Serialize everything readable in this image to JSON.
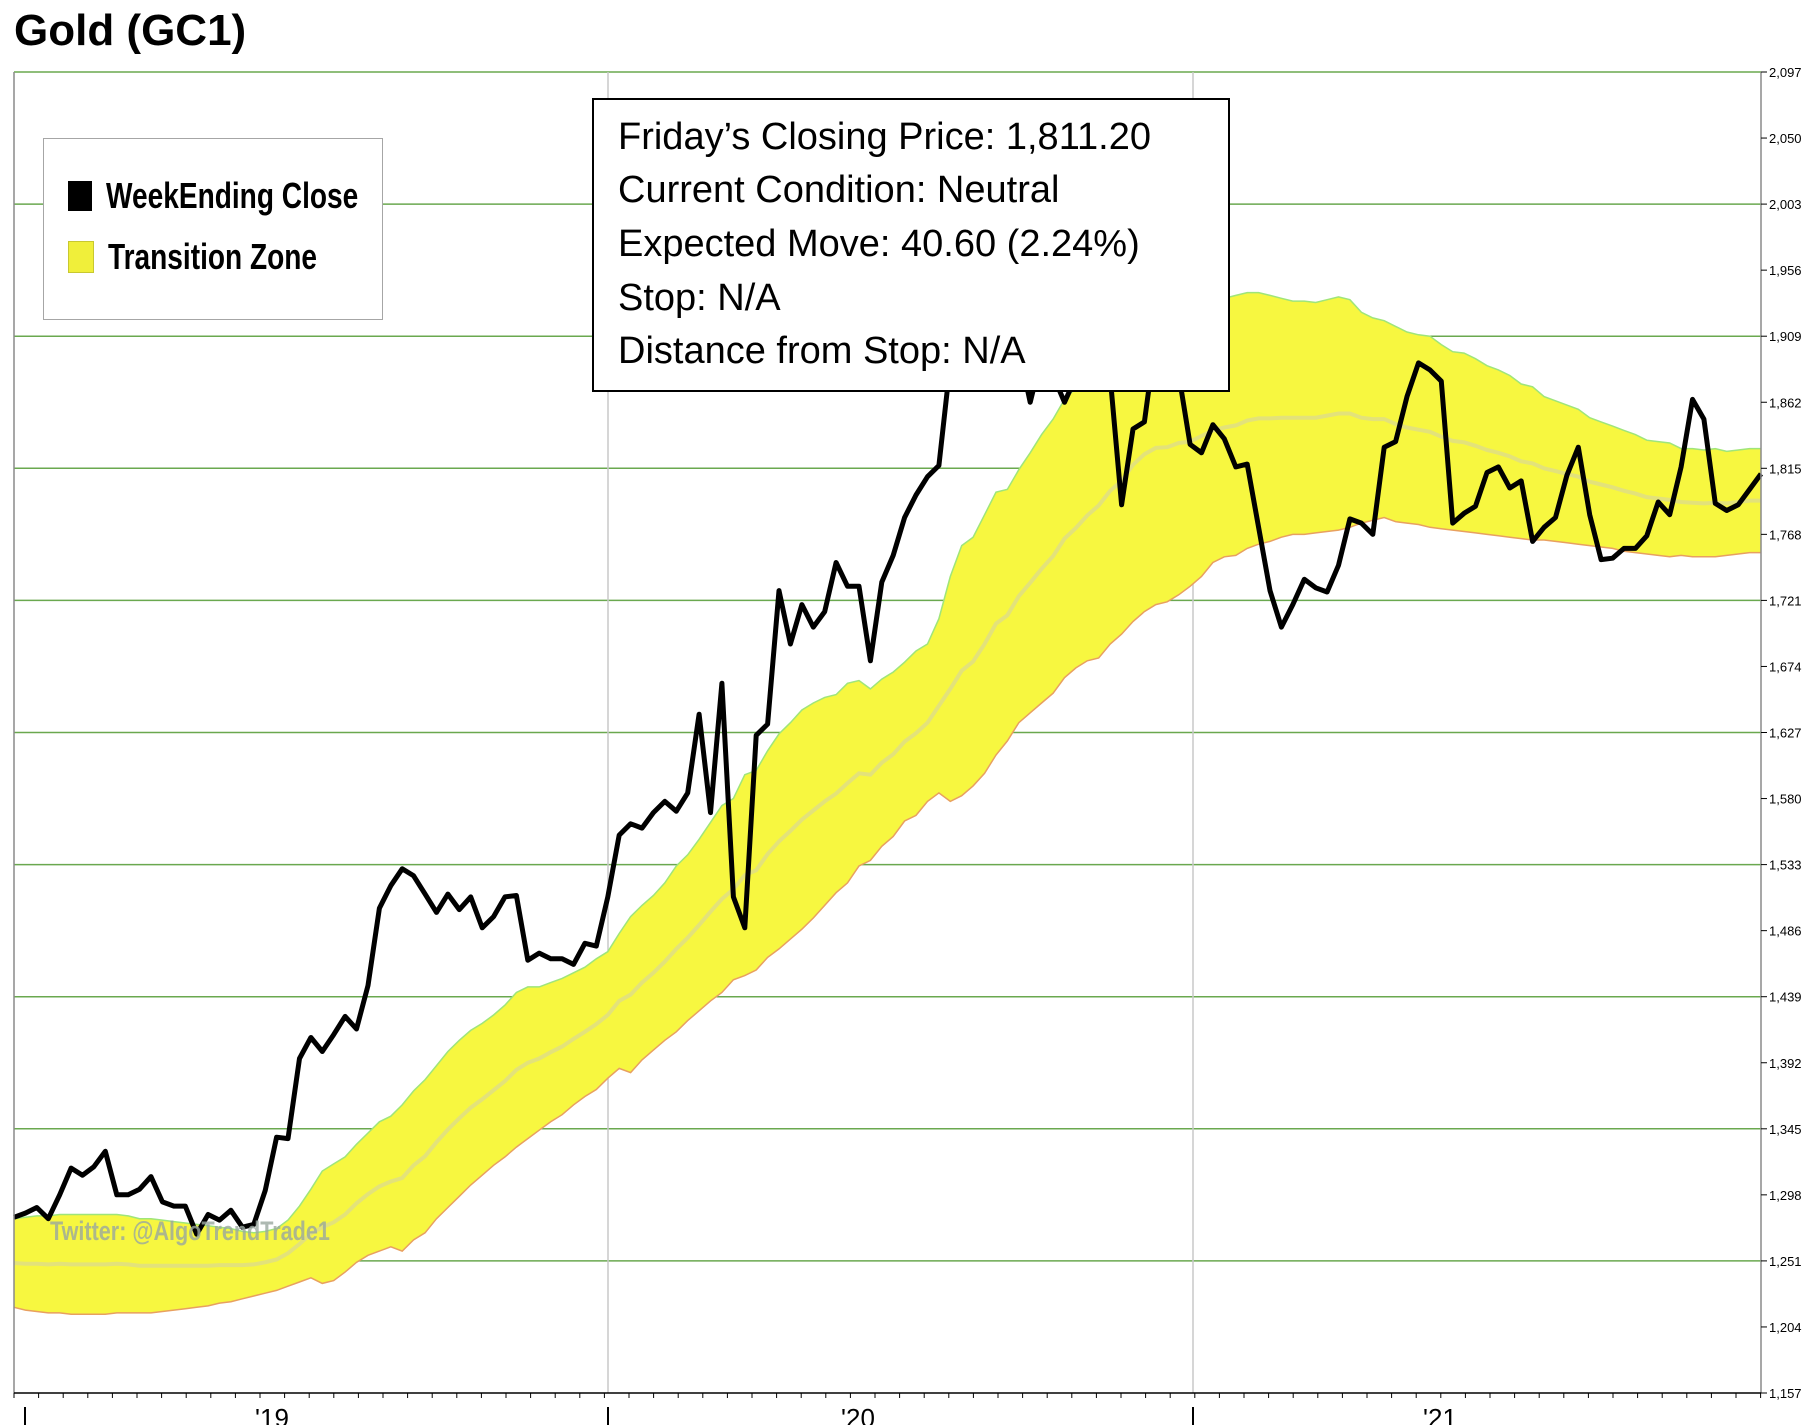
{
  "title": "Gold (GC1)",
  "legend": {
    "close_label": "WeekEnding Close",
    "zone_label": "Transition Zone",
    "close_color": "#000000",
    "zone_color": "#f7f740"
  },
  "info": {
    "closing": "Friday’s Closing Price: 1,811.20",
    "condition": "Current Condition: Neutral",
    "expected": "Expected Move: 40.60 (2.24%)",
    "stop": "Stop: N/A",
    "distance": "Distance from Stop: N/A"
  },
  "watermark": "Twitter: @AlgoTrendTrade1",
  "chart_data": {
    "type": "line",
    "title": "Gold (GC1)",
    "x_tick_labels": [
      "'19",
      "'20",
      "'21"
    ],
    "y_tick_labels": [
      "2,097",
      "2,050",
      "2,003",
      "1,956",
      "1,909",
      "1,862",
      "1,815",
      "1,768",
      "1,721",
      "1,674",
      "1,627",
      "1,580",
      "1,533",
      "1,486",
      "1,439",
      "1,392",
      "1,345",
      "1,298",
      "1,251",
      "1,204",
      "1,157"
    ],
    "ylim": [
      1157,
      2097
    ],
    "grid": true,
    "legend_position": "top-left",
    "series": [
      {
        "name": "WeekEnding Close",
        "color": "#000000",
        "values": [
          1282,
          1285,
          1289,
          1281,
          1298,
          1317,
          1312,
          1318,
          1329,
          1298,
          1298,
          1302,
          1311,
          1293,
          1290,
          1290,
          1270,
          1284,
          1280,
          1287,
          1275,
          1277,
          1301,
          1339,
          1338,
          1395,
          1410,
          1400,
          1412,
          1425,
          1416,
          1447,
          1502,
          1518,
          1530,
          1525,
          1512,
          1499,
          1512,
          1501,
          1510,
          1488,
          1496,
          1510,
          1511,
          1465,
          1470,
          1466,
          1466,
          1462,
          1477,
          1475,
          1510,
          1554,
          1562,
          1559,
          1570,
          1578,
          1571,
          1584,
          1640,
          1570,
          1662,
          1510,
          1488,
          1625,
          1633,
          1728,
          1690,
          1718,
          1702,
          1713,
          1748,
          1731,
          1731,
          1678,
          1734,
          1753,
          1780,
          1796,
          1809,
          1817,
          1890,
          1960,
          2002,
          1968,
          1937,
          1924,
          1900,
          1862,
          1895,
          1881,
          1862,
          1880,
          1880,
          1890,
          1880,
          1789,
          1843,
          1848,
          1908,
          1874,
          1882,
          1832,
          1826,
          1846,
          1836,
          1816,
          1818,
          1773,
          1728,
          1702,
          1718,
          1736,
          1730,
          1727,
          1746,
          1779,
          1776,
          1768,
          1830,
          1834,
          1866,
          1890,
          1885,
          1877,
          1776,
          1783,
          1788,
          1812,
          1816,
          1801,
          1806,
          1763,
          1773,
          1780,
          1810,
          1830,
          1782,
          1750,
          1751,
          1758,
          1758,
          1767,
          1791,
          1782,
          1816,
          1864,
          1850,
          1790,
          1785,
          1789,
          1800,
          1811
        ]
      },
      {
        "name": "Transition Zone upper",
        "color": "#9fe57a",
        "values": [
          1281,
          1282,
          1283,
          1283,
          1284,
          1284,
          1284,
          1284,
          1284,
          1284,
          1283,
          1281,
          1281,
          1280,
          1279,
          1278,
          1277,
          1276,
          1275,
          1274,
          1272,
          1271,
          1272,
          1274,
          1280,
          1290,
          1302,
          1315,
          1320,
          1325,
          1334,
          1342,
          1350,
          1354,
          1362,
          1372,
          1380,
          1390,
          1400,
          1408,
          1415,
          1420,
          1426,
          1433,
          1442,
          1446,
          1446,
          1449,
          1452,
          1456,
          1460,
          1466,
          1471,
          1484,
          1496,
          1504,
          1511,
          1520,
          1532,
          1540,
          1551,
          1563,
          1575,
          1580,
          1597,
          1600,
          1614,
          1626,
          1634,
          1643,
          1648,
          1652,
          1654,
          1662,
          1664,
          1658,
          1665,
          1670,
          1677,
          1685,
          1690,
          1708,
          1738,
          1760,
          1766,
          1782,
          1798,
          1800,
          1814,
          1826,
          1839,
          1850,
          1864,
          1872,
          1885,
          1897,
          1908,
          1915,
          1929,
          1937,
          1941,
          1940,
          1941,
          1937,
          1938,
          1936,
          1936,
          1938,
          1940,
          1940,
          1938,
          1936,
          1934,
          1934,
          1933,
          1935,
          1937,
          1935,
          1926,
          1922,
          1920,
          1916,
          1912,
          1910,
          1909,
          1903,
          1898,
          1897,
          1893,
          1888,
          1885,
          1881,
          1875,
          1873,
          1866,
          1863,
          1860,
          1857,
          1851,
          1848,
          1845,
          1842,
          1839,
          1835,
          1834,
          1833,
          1829,
          1829,
          1828,
          1829,
          1827,
          1828,
          1829,
          1829
        ]
      },
      {
        "name": "Transition Zone lower",
        "color": "#e8a060",
        "values": [
          1218,
          1216,
          1215,
          1214,
          1214,
          1213,
          1213,
          1213,
          1213,
          1214,
          1214,
          1214,
          1214,
          1215,
          1216,
          1217,
          1218,
          1219,
          1221,
          1222,
          1224,
          1226,
          1228,
          1230,
          1233,
          1236,
          1239,
          1235,
          1237,
          1243,
          1250,
          1255,
          1258,
          1261,
          1258,
          1266,
          1271,
          1281,
          1289,
          1297,
          1305,
          1312,
          1319,
          1325,
          1332,
          1338,
          1344,
          1350,
          1355,
          1362,
          1368,
          1373,
          1381,
          1388,
          1385,
          1394,
          1401,
          1408,
          1414,
          1422,
          1429,
          1436,
          1442,
          1451,
          1454,
          1458,
          1467,
          1473,
          1480,
          1487,
          1495,
          1504,
          1513,
          1520,
          1532,
          1536,
          1546,
          1553,
          1564,
          1568,
          1578,
          1584,
          1578,
          1582,
          1589,
          1598,
          1611,
          1621,
          1634,
          1641,
          1648,
          1655,
          1666,
          1673,
          1678,
          1680,
          1690,
          1697,
          1706,
          1713,
          1718,
          1720,
          1725,
          1731,
          1738,
          1748,
          1752,
          1753,
          1758,
          1761,
          1763,
          1766,
          1768,
          1768,
          1769,
          1770,
          1771,
          1773,
          1776,
          1778,
          1780,
          1777,
          1776,
          1775,
          1773,
          1772,
          1771,
          1770,
          1769,
          1768,
          1767,
          1766,
          1765,
          1764,
          1764,
          1763,
          1762,
          1761,
          1760,
          1759,
          1758,
          1756,
          1755,
          1754,
          1753,
          1752,
          1753,
          1752,
          1752,
          1752,
          1753,
          1754,
          1755,
          1755
        ]
      }
    ]
  }
}
